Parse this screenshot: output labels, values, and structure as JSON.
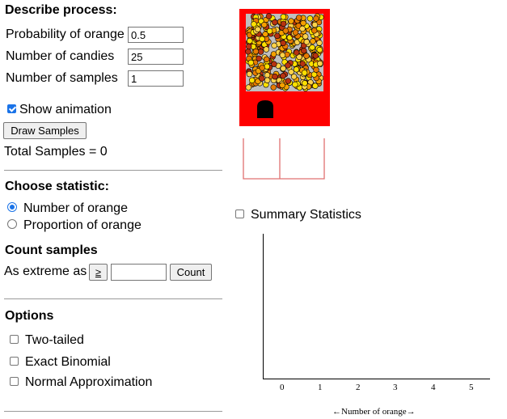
{
  "process": {
    "heading": "Describe process:",
    "prob_label": "Probability of orange",
    "prob_value": "0.5",
    "candies_label": "Number of candies",
    "candies_value": "25",
    "samples_label": "Number of samples",
    "samples_value": "1",
    "animation_label": "Show animation",
    "animation_checked": true,
    "draw_button": "Draw Samples",
    "total_samples": "Total Samples = 0"
  },
  "statistic": {
    "heading": "Choose statistic:",
    "options": [
      "Number of orange",
      "Proportion of orange"
    ],
    "selected": "Number of orange"
  },
  "count": {
    "heading": "Count samples",
    "extreme_label": "As extreme as",
    "operator": "≥",
    "value": "",
    "count_button": "Count"
  },
  "options": {
    "heading": "Options",
    "items": [
      "Two-tailed",
      "Exact Binomial",
      "Normal Approximation"
    ]
  },
  "summary": {
    "label": "Summary Statistics"
  },
  "machine": {
    "body_color": "#ff0000",
    "candy_colors": [
      "#ffe000",
      "#f5a000",
      "#b83210",
      "#ffd24a",
      "#e67a00"
    ]
  },
  "plot": {
    "x_ticks": [
      "0",
      "1",
      "2",
      "3",
      "4",
      "5"
    ],
    "x_label": "←Number of orange→"
  }
}
